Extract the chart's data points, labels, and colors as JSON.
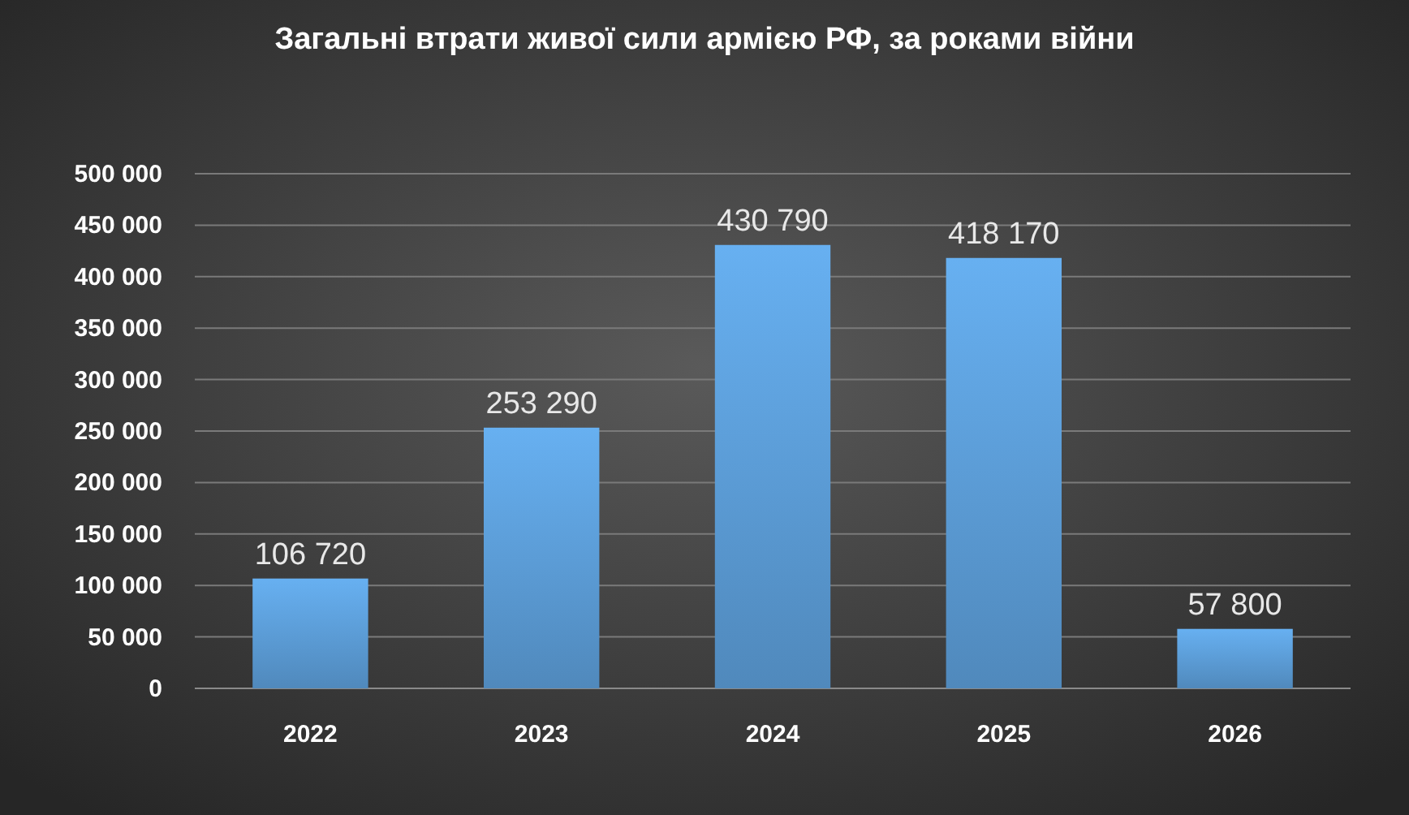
{
  "chart_data": {
    "type": "bar",
    "title": "Загальні втрати живої сили армією РФ, за роками війни",
    "categories": [
      "2022",
      "2023",
      "2024",
      "2025",
      "2026"
    ],
    "values": [
      106720,
      253290,
      430790,
      418170,
      57800
    ],
    "value_labels": [
      "106 720",
      "253 290",
      "430 790",
      "418 170",
      "57 800"
    ],
    "color": "#5b9bd5",
    "ylim": [
      0,
      500000
    ],
    "yticks": [
      0,
      {
        "value": 50000,
        "label": "50 000"
      },
      {
        "value": 100000,
        "label": "100 000"
      },
      {
        "value": 150000,
        "label": "150 000"
      },
      {
        "value": 200000,
        "label": "200 000"
      },
      {
        "value": 250000,
        "label": "250 000"
      },
      {
        "value": 300000,
        "label": "300 000"
      },
      {
        "value": 350000,
        "label": "350 000"
      },
      {
        "value": 400000,
        "label": "400 000"
      },
      {
        "value": 450000,
        "label": "450 000"
      },
      {
        "value": 500000,
        "label": "500 000"
      }
    ],
    "grid": true
  }
}
